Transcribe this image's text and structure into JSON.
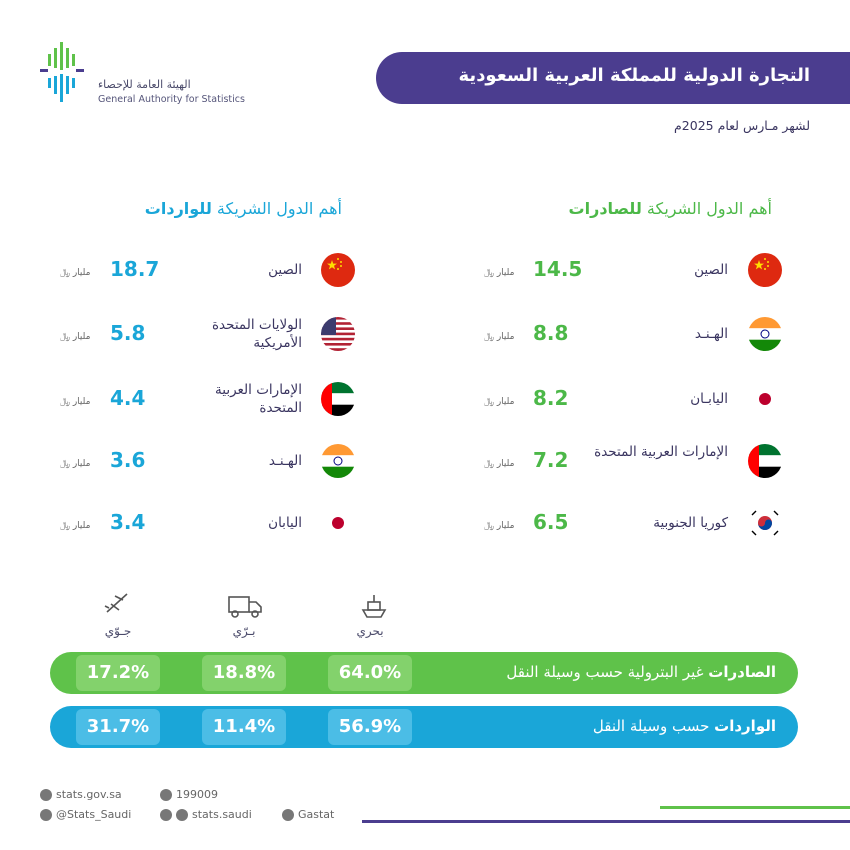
{
  "logo": {
    "arabic_name": "الهيئة العامة للإحصاء",
    "english_name": "General Authority for Statistics",
    "icon": "gastat-logo-icon"
  },
  "header": {
    "title": "التجارة الدولية للمملكة العربية السعودية",
    "subtitle": "لشهر مـارس لعام 2025م"
  },
  "exports": {
    "heading_prefix": "أهم الدول الشريكة ",
    "heading_highlight": "للصادرات",
    "unit": "مليار ﷼",
    "items": [
      {
        "country": "الصين",
        "value": "14.5",
        "flag": "china"
      },
      {
        "country": "الهـنـد",
        "value": "8.8",
        "flag": "india"
      },
      {
        "country": "اليابـان",
        "value": "8.2",
        "flag": "japan"
      },
      {
        "country": "الإمارات العربية المتحدة",
        "value": "7.2",
        "flag": "uae"
      },
      {
        "country": "كوريا الجنوبية",
        "value": "6.5",
        "flag": "korea"
      }
    ]
  },
  "imports": {
    "heading_prefix": "أهم الدول الشريكة ",
    "heading_highlight": "للواردات",
    "unit": "مليار ﷼",
    "items": [
      {
        "country": "الصين",
        "value": "18.7",
        "flag": "china"
      },
      {
        "country": "الولايات المتحدة الأمريكية",
        "value": "5.8",
        "flag": "usa"
      },
      {
        "country": "الإمارات العربية المتحدة",
        "value": "4.4",
        "flag": "uae"
      },
      {
        "country": "الهـنـد",
        "value": "3.6",
        "flag": "india"
      },
      {
        "country": "اليابان",
        "value": "3.4",
        "flag": "japan"
      }
    ]
  },
  "transport": {
    "modes": [
      {
        "label": "بحري",
        "icon": "ship-icon"
      },
      {
        "label": "بـرّي",
        "icon": "truck-icon"
      },
      {
        "label": "جـوّي",
        "icon": "plane-icon"
      }
    ],
    "exports_bar": {
      "label_bold": "الصادرات",
      "label_rest": " غير البترولية حسب وسيلة النقل",
      "sea": "64.0%",
      "land": "18.8%",
      "air": "17.2%"
    },
    "imports_bar": {
      "label_bold": "الواردات",
      "label_rest": " حسب وسيلة النقل",
      "sea": "56.9%",
      "land": "11.4%",
      "air": "31.7%"
    }
  },
  "footer": {
    "website": "stats.gov.sa",
    "phone": "199009",
    "twitter": "@Stats_Saudi",
    "social": "stats.saudi",
    "linkedin": "Gastat"
  },
  "colors": {
    "purple": "#4b3d8f",
    "green": "#4cb848",
    "blue": "#1aa6d8"
  }
}
